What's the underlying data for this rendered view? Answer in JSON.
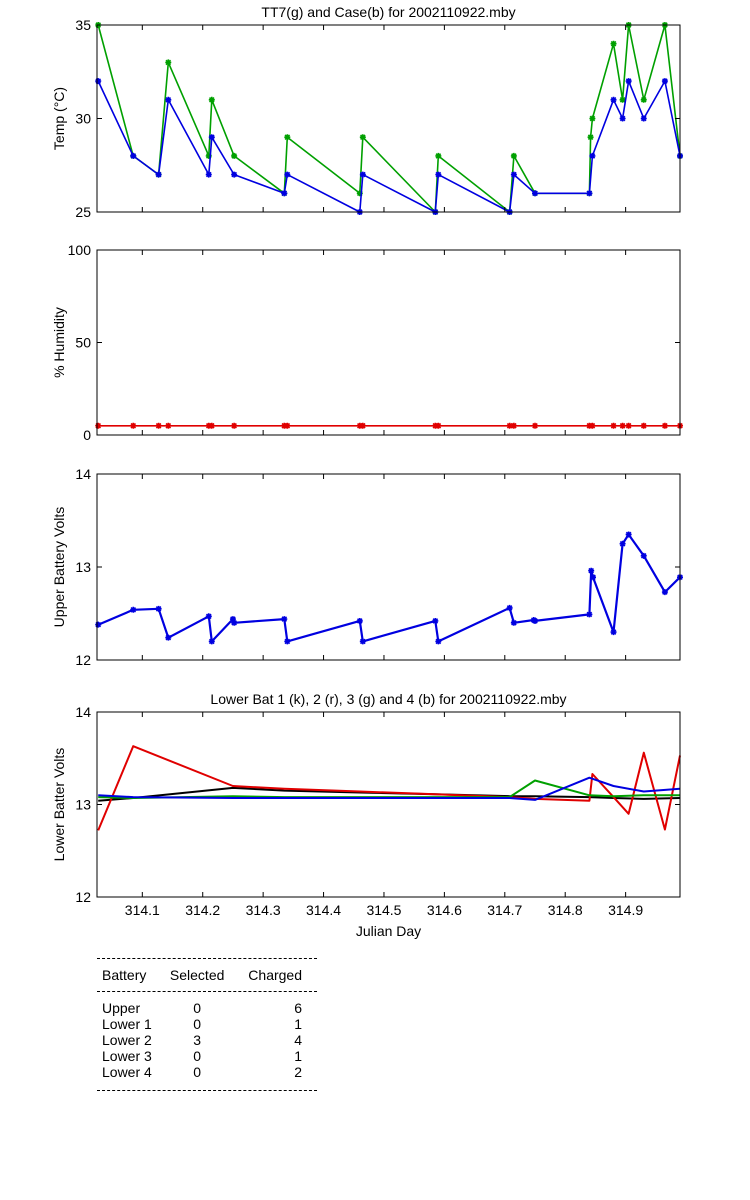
{
  "chart_data": [
    {
      "type": "line",
      "title": "TT7(g) and Case(b) for 2002110922.mby",
      "xlabel": "",
      "ylabel": "Temp  (°C)",
      "xlim": [
        314.025,
        314.99
      ],
      "ylim": [
        25,
        35
      ],
      "yticks": [
        25,
        30,
        35
      ],
      "series": [
        {
          "name": "TT7",
          "color": "#00a000",
          "x": [
            314.027,
            314.085,
            314.127,
            314.143,
            314.21,
            314.215,
            314.252,
            314.335,
            314.34,
            314.46,
            314.465,
            314.585,
            314.59,
            314.708,
            314.715,
            314.75,
            314.84,
            314.842,
            314.845,
            314.88,
            314.895,
            314.905,
            314.93,
            314.965,
            314.99
          ],
          "y": [
            35,
            28,
            27,
            33,
            28,
            31,
            28,
            26,
            29,
            26,
            29,
            25,
            28,
            25,
            28,
            26,
            26,
            29,
            30,
            34,
            31,
            35,
            31,
            35,
            28
          ]
        },
        {
          "name": "Case",
          "color": "#0000e0",
          "x": [
            314.027,
            314.085,
            314.127,
            314.143,
            314.21,
            314.215,
            314.252,
            314.335,
            314.34,
            314.46,
            314.465,
            314.585,
            314.59,
            314.708,
            314.715,
            314.75,
            314.84,
            314.845,
            314.88,
            314.895,
            314.905,
            314.93,
            314.965,
            314.99
          ],
          "y": [
            32,
            28,
            27,
            31,
            27,
            29,
            27,
            26,
            27,
            25,
            27,
            25,
            27,
            25,
            27,
            26,
            26,
            28,
            31,
            30,
            32,
            30,
            32,
            28
          ]
        }
      ]
    },
    {
      "type": "line",
      "title": "",
      "xlabel": "",
      "ylabel": "% Humidity",
      "xlim": [
        314.025,
        314.99
      ],
      "ylim": [
        0,
        100
      ],
      "yticks": [
        0,
        50,
        100
      ],
      "series": [
        {
          "name": "Humidity",
          "color": "#e00000",
          "x": [
            314.027,
            314.085,
            314.127,
            314.143,
            314.21,
            314.215,
            314.252,
            314.335,
            314.34,
            314.46,
            314.465,
            314.585,
            314.59,
            314.708,
            314.715,
            314.75,
            314.84,
            314.845,
            314.88,
            314.895,
            314.905,
            314.93,
            314.965,
            314.99
          ],
          "y": [
            5,
            5,
            5,
            5,
            5,
            5,
            5,
            5,
            5,
            5,
            5,
            5,
            5,
            5,
            5,
            5,
            5,
            5,
            5,
            5,
            5,
            5,
            5,
            5
          ]
        }
      ]
    },
    {
      "type": "line",
      "title": "",
      "xlabel": "",
      "ylabel": "Upper Battery Volts",
      "xlim": [
        314.025,
        314.99
      ],
      "ylim": [
        12,
        14
      ],
      "yticks": [
        12,
        13,
        14
      ],
      "series": [
        {
          "name": "Upper",
          "color": "#0000e0",
          "x": [
            314.027,
            314.085,
            314.127,
            314.143,
            314.21,
            314.215,
            314.25,
            314.252,
            314.335,
            314.34,
            314.46,
            314.465,
            314.585,
            314.59,
            314.708,
            314.715,
            314.748,
            314.75,
            314.84,
            314.843,
            314.846,
            314.88,
            314.895,
            314.905,
            314.93,
            314.965,
            314.99
          ],
          "y": [
            12.38,
            12.54,
            12.55,
            12.24,
            12.47,
            12.2,
            12.44,
            12.4,
            12.44,
            12.2,
            12.42,
            12.2,
            12.42,
            12.2,
            12.56,
            12.4,
            12.43,
            12.42,
            12.49,
            12.96,
            12.89,
            12.3,
            13.25,
            13.35,
            13.12,
            12.73,
            12.89
          ]
        }
      ]
    },
    {
      "type": "line",
      "title": "Lower Bat 1 (k), 2 (r), 3 (g) and 4 (b) for 2002110922.mby",
      "xlabel": "Julian Day",
      "ylabel": "Lower Batter Volts",
      "xlim": [
        314.025,
        314.99
      ],
      "ylim": [
        12,
        14
      ],
      "yticks": [
        12,
        13,
        14
      ],
      "xticks": [
        314.1,
        314.2,
        314.3,
        314.4,
        314.5,
        314.6,
        314.7,
        314.8,
        314.9
      ],
      "series": [
        {
          "name": "Lower 1",
          "color": "#000000",
          "x": [
            314.027,
            314.085,
            314.25,
            314.335,
            314.46,
            314.585,
            314.708,
            314.75,
            314.84,
            314.88,
            314.93,
            314.99
          ],
          "y": [
            13.04,
            13.07,
            13.18,
            13.15,
            13.13,
            13.11,
            13.09,
            13.09,
            13.08,
            13.07,
            13.06,
            13.07
          ]
        },
        {
          "name": "Lower 2",
          "color": "#e00000",
          "x": [
            314.027,
            314.085,
            314.25,
            314.335,
            314.46,
            314.585,
            314.708,
            314.75,
            314.84,
            314.845,
            314.88,
            314.905,
            314.93,
            314.965,
            314.99
          ],
          "y": [
            12.72,
            13.63,
            13.2,
            13.17,
            13.14,
            13.11,
            13.08,
            13.06,
            13.04,
            13.33,
            13.08,
            12.9,
            13.56,
            12.73,
            13.53
          ]
        },
        {
          "name": "Lower 3",
          "color": "#00a000",
          "x": [
            314.027,
            314.085,
            314.25,
            314.335,
            314.46,
            314.585,
            314.708,
            314.75,
            314.84,
            314.88,
            314.93,
            314.99
          ],
          "y": [
            13.08,
            13.07,
            13.09,
            13.08,
            13.08,
            13.08,
            13.08,
            13.26,
            13.1,
            13.09,
            13.1,
            13.1
          ]
        },
        {
          "name": "Lower 4",
          "color": "#0000e0",
          "x": [
            314.027,
            314.085,
            314.25,
            314.335,
            314.46,
            314.585,
            314.708,
            314.75,
            314.84,
            314.88,
            314.93,
            314.99
          ],
          "y": [
            13.1,
            13.08,
            13.07,
            13.07,
            13.07,
            13.07,
            13.07,
            13.05,
            13.29,
            13.2,
            13.14,
            13.17
          ]
        }
      ]
    }
  ],
  "table": {
    "headers": [
      "Battery",
      "Selected",
      "Charged"
    ],
    "rows": [
      [
        "Upper",
        "0",
        "6"
      ],
      [
        "Lower 1",
        "0",
        "1"
      ],
      [
        "Lower 2",
        "3",
        "4"
      ],
      [
        "Lower 3",
        "0",
        "1"
      ],
      [
        "Lower 4",
        "0",
        "2"
      ]
    ]
  }
}
